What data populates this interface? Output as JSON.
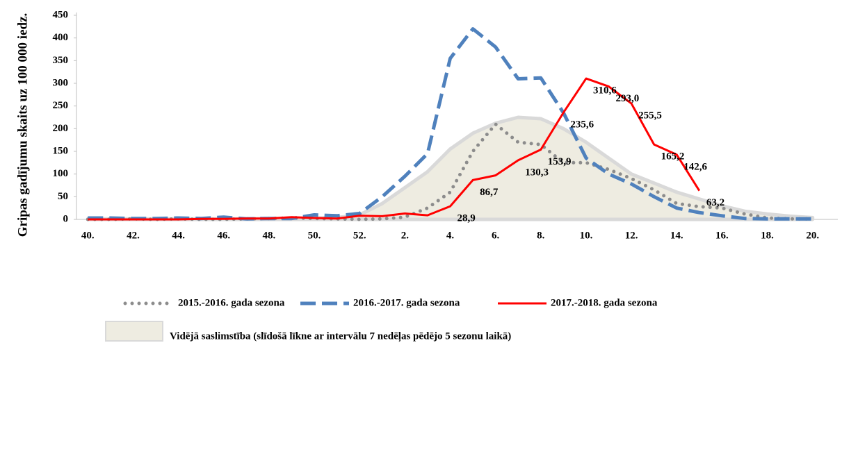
{
  "chart_data": {
    "type": "line",
    "y_label": "Gripas gadījumu skaits uz 100 000 iedz.",
    "categories": [
      "40.",
      null,
      "42.",
      null,
      "44.",
      null,
      "46.",
      null,
      "48.",
      null,
      "50.",
      null,
      "52.",
      null,
      "2.",
      null,
      "4.",
      null,
      "6.",
      null,
      "8.",
      null,
      "10.",
      null,
      "12.",
      null,
      "14.",
      null,
      "16.",
      null,
      "18.",
      null,
      "20."
    ],
    "ylim": [
      0,
      450
    ],
    "yticks": [
      0,
      50,
      100,
      150,
      200,
      250,
      300,
      350,
      400,
      450
    ],
    "series": [
      {
        "name": "Vidējā saslimstība (slīdošā līkne ar intervālu 7 nedēļas pēdējo 5 sezonu laikā)",
        "style": "area",
        "color": "#eeece1",
        "values": [
          1,
          1,
          1,
          1,
          1,
          1,
          1,
          1,
          2,
          2,
          3,
          4,
          10,
          35,
          70,
          105,
          155,
          190,
          212,
          225,
          222,
          200,
          170,
          135,
          100,
          80,
          60,
          45,
          30,
          18,
          12,
          7,
          4
        ]
      },
      {
        "name": "2015.-2016. gada sezona",
        "style": "dotted",
        "color": "#8c8c8c",
        "values": [
          0,
          0,
          1,
          0,
          1,
          0,
          0,
          1,
          2,
          3,
          2,
          1,
          0,
          1,
          5,
          25,
          60,
          150,
          210,
          170,
          165,
          125,
          125,
          110,
          90,
          65,
          35,
          28,
          25,
          12,
          3,
          1,
          1
        ]
      },
      {
        "name": "2016.-2017. gada sezona",
        "style": "dashed",
        "color": "#4f81bd",
        "values": [
          3,
          3,
          2,
          2,
          3,
          2,
          5,
          1,
          2,
          2,
          10,
          8,
          13,
          50,
          95,
          145,
          355,
          420,
          380,
          310,
          312,
          235,
          135,
          100,
          78,
          50,
          25,
          15,
          8,
          2,
          1,
          1,
          1
        ]
      },
      {
        "name": "2017.-2018. gada sezona",
        "style": "solid",
        "color": "#ff0000",
        "values": [
          0,
          0,
          0,
          0,
          0,
          1,
          1,
          2,
          2,
          5,
          3,
          2,
          8,
          7,
          13,
          9,
          28.9,
          86.7,
          97,
          130.3,
          153.9,
          235.6,
          310.6,
          293.0,
          255.5,
          165.2,
          142.6,
          63.2,
          null,
          null,
          null,
          null,
          null
        ],
        "value_labels": [
          null,
          null,
          null,
          null,
          null,
          null,
          null,
          null,
          null,
          null,
          null,
          null,
          null,
          null,
          null,
          null,
          "28,9",
          "86,7",
          null,
          "130,3",
          "153,9",
          "235,6",
          "310,6",
          "293,0",
          "255,5",
          "165,2",
          "142,6",
          "63,2",
          null,
          null,
          null,
          null,
          null
        ]
      }
    ]
  }
}
